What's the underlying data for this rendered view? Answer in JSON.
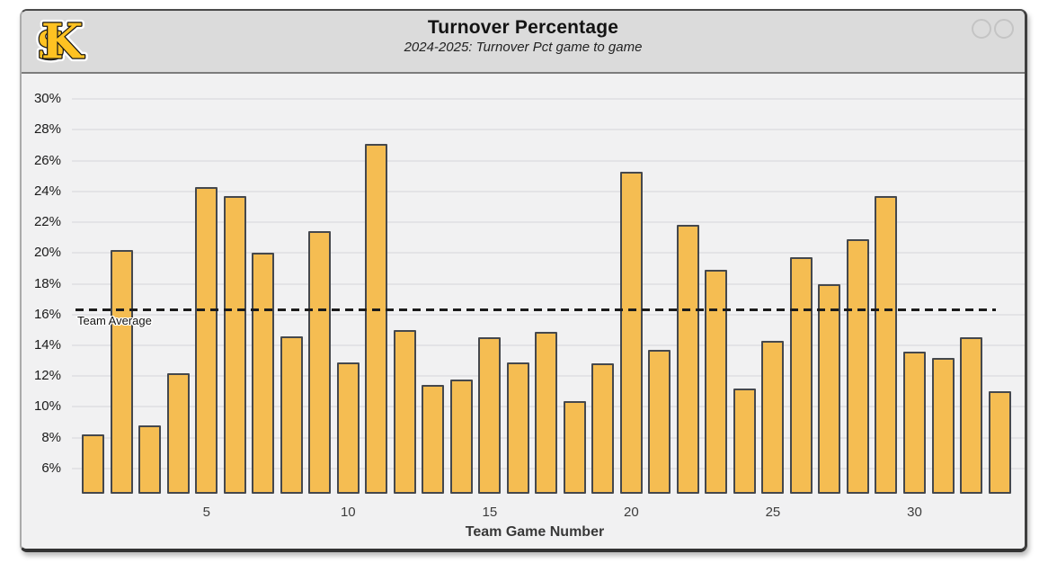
{
  "window": {
    "header": {
      "title": "Turnover Percentage",
      "subtitle": "2024-2025: Turnover Pct game to game",
      "logo_letters": {
        "k": "K",
        "s": "S"
      }
    }
  },
  "chart_data": {
    "type": "bar",
    "title": "Turnover Percentage",
    "subtitle": "2024-2025: Turnover Pct game to game",
    "xlabel": "Team Game Number",
    "ylabel": "",
    "x": [
      1,
      2,
      3,
      4,
      5,
      6,
      7,
      8,
      9,
      10,
      11,
      12,
      13,
      14,
      15,
      16,
      17,
      18,
      19,
      20,
      21,
      22,
      23,
      24,
      25,
      26,
      27,
      28,
      29,
      30,
      31,
      32,
      33
    ],
    "values": [
      8.2,
      20.2,
      8.8,
      12.2,
      24.3,
      23.7,
      20.0,
      14.6,
      21.4,
      12.9,
      27.1,
      15.0,
      11.4,
      11.8,
      14.5,
      12.9,
      14.9,
      10.4,
      12.8,
      25.3,
      13.7,
      21.8,
      18.9,
      11.2,
      14.3,
      19.7,
      18.0,
      20.9,
      23.7,
      13.6,
      13.2,
      14.5,
      11.0
    ],
    "x_ticks": [
      5,
      10,
      15,
      20,
      25,
      30
    ],
    "y_ticks": [
      {
        "value": 30,
        "label": "30%"
      },
      {
        "value": 28,
        "label": "28%"
      },
      {
        "value": 26,
        "label": "26%"
      },
      {
        "value": 24,
        "label": "24%"
      },
      {
        "value": 22,
        "label": "22%"
      },
      {
        "value": 20,
        "label": "20%"
      },
      {
        "value": 18,
        "label": "18%"
      },
      {
        "value": 16,
        "label": "16%"
      },
      {
        "value": 14,
        "label": "14%"
      },
      {
        "value": 12,
        "label": "12%"
      },
      {
        "value": 10,
        "label": "10%"
      },
      {
        "value": 8,
        "label": "8%"
      },
      {
        "value": 6,
        "label": "6%"
      }
    ],
    "ylim": [
      4.35,
      31.65
    ],
    "grid": true,
    "legend": false,
    "average_line": {
      "label": "Team Average",
      "value": 16.3,
      "style": "dashed"
    },
    "colors": {
      "bar_fill": "#F5BD52",
      "bar_edge": "#45484D",
      "average_line": "#1C1C1C",
      "plot_bg": "#F1F1F2",
      "gridline": "#E3E3E6",
      "header_bg": "#DBDBDB",
      "logo_gold": "#FFC222"
    }
  }
}
